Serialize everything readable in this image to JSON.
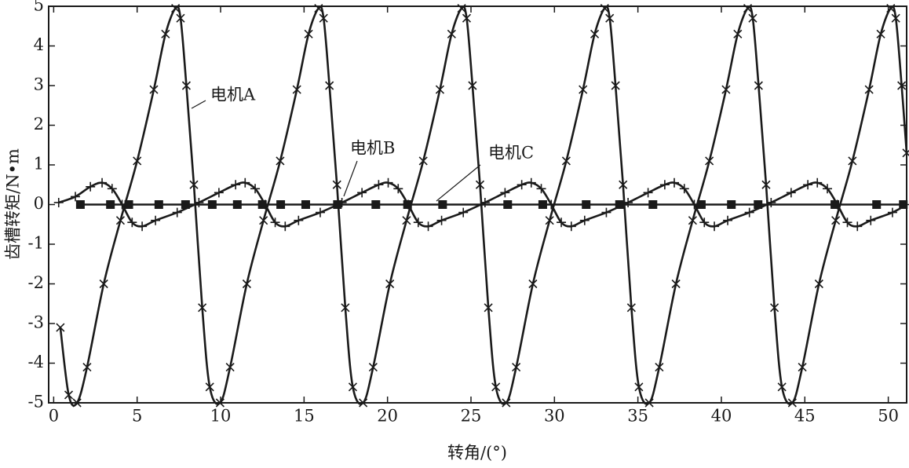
{
  "chart_data": {
    "type": "line",
    "xlabel": "转角/(°)",
    "ylabel": "齿槽转矩/N•m",
    "xlim": [
      -0.3,
      51.1
    ],
    "ylim": [
      -5,
      5
    ],
    "xticks": [
      0,
      5,
      10,
      15,
      20,
      25,
      30,
      35,
      40,
      45,
      50
    ],
    "yticks": [
      -5,
      -4,
      -3,
      -2,
      -1,
      0,
      1,
      2,
      3,
      4,
      5
    ],
    "annotations": [
      "电机A",
      "电机B",
      "电机C"
    ],
    "series": [
      {
        "name": "电机A",
        "color": "#1a1a1a",
        "marker": "x",
        "x": [
          0.4,
          0.9,
          1.4,
          2.0,
          3.0,
          4.0,
          5.0,
          6.0,
          6.7,
          7.3,
          7.6,
          7.95,
          8.4,
          8.9,
          9.35,
          9.97,
          10.57,
          11.57,
          12.57,
          13.57,
          14.57,
          15.27,
          15.87,
          16.17,
          16.52,
          16.97,
          17.47,
          17.92,
          18.54,
          19.14,
          20.14,
          21.14,
          22.14,
          23.14,
          23.84,
          24.44,
          24.74,
          25.09,
          25.54,
          26.04,
          26.49,
          27.11,
          27.71,
          28.71,
          29.71,
          30.71,
          31.71,
          32.41,
          33.01,
          33.31,
          33.66,
          34.11,
          34.61,
          35.06,
          35.68,
          36.28,
          37.28,
          38.28,
          39.28,
          40.28,
          40.98,
          41.58,
          41.88,
          42.23,
          42.68,
          43.18,
          43.63,
          44.25,
          44.85,
          45.85,
          46.85,
          47.85,
          48.85,
          49.55,
          50.15,
          50.45,
          50.8,
          51.1
        ],
        "values": [
          -3.1,
          -4.8,
          -5,
          -4.1,
          -2,
          -0.4,
          1.1,
          2.9,
          4.3,
          4.95,
          4.7,
          3.0,
          0.5,
          -2.6,
          -4.6,
          -5,
          -4.1,
          -2,
          -0.4,
          1.1,
          2.9,
          4.3,
          4.95,
          4.7,
          3.0,
          0.5,
          -2.6,
          -4.6,
          -5,
          -4.1,
          -2,
          -0.4,
          1.1,
          2.9,
          4.3,
          4.95,
          4.7,
          3.0,
          0.5,
          -2.6,
          -4.6,
          -5,
          -4.1,
          -2,
          -0.4,
          1.1,
          2.9,
          4.3,
          4.95,
          4.7,
          3.0,
          0.5,
          -2.6,
          -4.6,
          -5,
          -4.1,
          -2,
          -0.4,
          1.1,
          2.9,
          4.3,
          4.95,
          4.7,
          3.0,
          0.5,
          -2.6,
          -4.6,
          -5,
          -4.1,
          -2,
          -0.4,
          1.1,
          2.9,
          4.3,
          4.95,
          4.7,
          3.0,
          1.3
        ]
      },
      {
        "name": "电机B",
        "color": "#1a1a1a",
        "marker": "plus",
        "x": [
          0.3,
          1.3,
          2.2,
          2.9,
          3.5,
          4.1,
          4.7,
          5.3,
          6.1,
          7.4,
          8.7,
          9.9,
          10.9,
          11.47,
          12.07,
          12.67,
          13.27,
          13.87,
          14.67,
          15.97,
          17.27,
          18.47,
          19.47,
          20.04,
          20.64,
          21.24,
          21.84,
          22.44,
          23.24,
          24.54,
          25.84,
          27.04,
          28.04,
          28.61,
          29.21,
          29.81,
          30.41,
          31.01,
          31.81,
          33.11,
          34.41,
          35.61,
          36.61,
          37.18,
          37.78,
          38.38,
          38.98,
          39.58,
          40.38,
          41.68,
          42.98,
          44.18,
          45.18,
          45.75,
          46.35,
          46.95,
          47.55,
          48.15,
          48.95,
          50.25,
          51.1
        ],
        "values": [
          0.05,
          0.2,
          0.45,
          0.55,
          0.4,
          0,
          -0.45,
          -0.55,
          -0.4,
          -0.2,
          0.05,
          0.3,
          0.5,
          0.55,
          0.4,
          0,
          -0.45,
          -0.55,
          -0.4,
          -0.2,
          0.05,
          0.3,
          0.5,
          0.55,
          0.4,
          0,
          -0.45,
          -0.55,
          -0.4,
          -0.2,
          0.05,
          0.3,
          0.5,
          0.55,
          0.4,
          0,
          -0.45,
          -0.55,
          -0.4,
          -0.2,
          0.05,
          0.3,
          0.5,
          0.55,
          0.4,
          0,
          -0.45,
          -0.55,
          -0.4,
          -0.2,
          0.05,
          0.3,
          0.5,
          0.55,
          0.4,
          0,
          -0.45,
          -0.55,
          -0.4,
          -0.2,
          0
        ]
      },
      {
        "name": "电机C",
        "color": "#1a1a1a",
        "marker": "square",
        "x": [
          1.6,
          3.4,
          4.5,
          6.3,
          7.9,
          9.5,
          11.0,
          12.5,
          13.6,
          15.1,
          17.0,
          19.3,
          21.2,
          23.3,
          27.2,
          29.3,
          31.9,
          33.9,
          35.9,
          38.8,
          40.6,
          42.2,
          46.8,
          49.3,
          50.9
        ],
        "values": [
          0,
          0,
          0,
          0,
          0,
          0,
          0,
          0,
          0,
          0,
          0,
          0,
          0,
          0,
          0,
          0,
          0,
          0,
          0,
          0,
          0,
          0,
          0,
          0,
          0
        ]
      }
    ]
  }
}
